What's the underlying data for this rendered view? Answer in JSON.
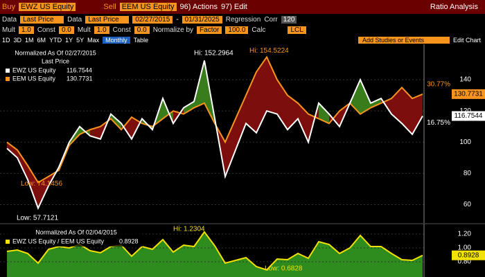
{
  "toolbar": {
    "buy": "Buy",
    "buy_ticker": "EWZ US Equity",
    "sell": "Sell",
    "sell_ticker": "EEM US Equity",
    "actions": "96) Actions",
    "edit": "97) Edit",
    "title": "Ratio Analysis",
    "row2": {
      "data1": "Data",
      "field1": "Last Price",
      "data2": "Data",
      "field2": "Last Price",
      "start": "02/27/2015",
      "dash": "-",
      "end": "01/31/2025",
      "regression": "Regression",
      "corr": "Corr",
      "corr_value": "120"
    },
    "row3": {
      "mult1": "Mult",
      "mult1_value": "1.0",
      "const1": "Const",
      "const1_value": "0.0",
      "mult2": "Mult",
      "mult2_value": "1.0",
      "const2": "Const",
      "const2_value": "0.0",
      "normalize": "Normalize by",
      "factor": "Factor",
      "factor_value": "100.0",
      "calc": "Calc",
      "lcl": "LCL"
    },
    "row4": {
      "periods": [
        "1D",
        "3D",
        "1M",
        "6M",
        "YTD",
        "1Y",
        "5Y",
        "Max"
      ],
      "frequency": "Monthly",
      "table": "Table",
      "studies": "Add Studies or Events",
      "edit_chart": "Edit Chart"
    }
  },
  "upper_chart": {
    "legend_title": "Normalized As Of 02/27/2015",
    "legend_subtitle": "Last Price",
    "ylim": [
      50,
      160
    ],
    "yticks": [
      60,
      80,
      100,
      120,
      140
    ],
    "series": [
      {
        "name": "EWZ US Equity",
        "last": 116.7544,
        "change": "16.75%",
        "color": "#ffffff",
        "values": [
          96,
          90,
          76,
          57.7121,
          72,
          84,
          100,
          110,
          104,
          102,
          118,
          112,
          102,
          115,
          108,
          128,
          112,
          122,
          126,
          152.2964,
          115,
          78,
          95,
          112,
          106,
          120,
          118,
          108,
          115,
          100,
          125,
          118,
          110,
          125,
          140,
          125,
          128,
          118,
          112,
          105,
          116.7544
        ]
      },
      {
        "name": "EEM US Equity",
        "last": 130.7731,
        "change": "30.77%",
        "color": "#f7941d",
        "values": [
          100,
          95,
          85,
          74.1456,
          78,
          82,
          98,
          105,
          108,
          110,
          115,
          108,
          116,
          112,
          110,
          115,
          120,
          118,
          122,
          125,
          112,
          100,
          115,
          130,
          145,
          154.5224,
          140,
          130,
          125,
          118,
          115,
          112,
          120,
          125,
          118,
          122,
          125,
          128,
          135,
          128,
          130.7731
        ]
      }
    ],
    "annotations": [
      "Hi: 152.2964",
      "Hi: 154.5224",
      "Low: 74.1456",
      "Low: 57.7121"
    ]
  },
  "lower_chart": {
    "legend_title": "Normalized As Of 02/04/2015",
    "series_name": "EWZ US Equity / EEM US Equity",
    "last": 0.8928,
    "color": "#f2e200",
    "fill": "#2e8b1e",
    "ylim": [
      0.6,
      1.32
    ],
    "yticks": [
      {
        "value": 0.8,
        "label": "0.80"
      },
      {
        "value": 1.0,
        "label": "1.00"
      },
      {
        "value": 1.2,
        "label": "1.20"
      }
    ],
    "values": [
      0.95,
      0.97,
      0.92,
      0.78,
      0.98,
      1.02,
      1.0,
      1.05,
      0.96,
      0.93,
      1.02,
      1.04,
      0.88,
      1.02,
      0.98,
      1.12,
      0.94,
      1.04,
      1.02,
      1.2304,
      1.03,
      0.78,
      0.82,
      0.86,
      0.73,
      0.6828,
      0.84,
      0.83,
      0.92,
      0.85,
      1.09,
      1.05,
      0.92,
      1.0,
      1.18,
      1.02,
      1.02,
      0.92,
      0.83,
      0.82,
      0.8928
    ],
    "annotations": [
      "Hi: 1.2304",
      "Low: 0.6828"
    ]
  }
}
